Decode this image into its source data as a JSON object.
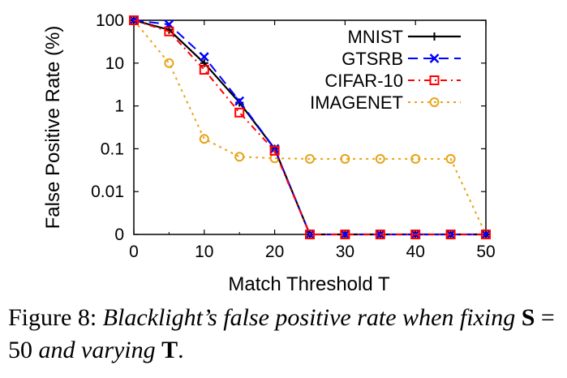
{
  "chart_data": {
    "type": "line",
    "xlabel": "Match Threshold T",
    "ylabel": "False Positive Rate (%)",
    "xlim": [
      0,
      50
    ],
    "x_ticks": [
      "0",
      "10",
      "20",
      "30",
      "40",
      "50"
    ],
    "y_ticks": [
      "0",
      "0.01",
      "0.1",
      "1",
      "10",
      "100"
    ],
    "y_scale": "log",
    "legend_position": "top-right",
    "grid": false,
    "x": [
      0,
      5,
      10,
      15,
      20,
      25,
      30,
      35,
      40,
      45,
      50
    ],
    "series": [
      {
        "name": "MNIST",
        "color": "#000000",
        "marker": "plus",
        "dash": "solid",
        "values": [
          100,
          60,
          10,
          1.2,
          0.1,
          0,
          0,
          0,
          0,
          0,
          0
        ]
      },
      {
        "name": "GTSRB",
        "color": "#0000ff",
        "marker": "x",
        "dash": "dashed",
        "values": [
          100,
          80,
          14,
          1.3,
          0.1,
          0,
          0,
          0,
          0,
          0,
          0
        ]
      },
      {
        "name": "CIFAR-10",
        "color": "#ff0000",
        "marker": "square",
        "dash": "dashdot",
        "values": [
          100,
          55,
          7,
          0.7,
          0.09,
          0,
          0,
          0,
          0,
          0,
          0
        ]
      },
      {
        "name": "IMAGENET",
        "color": "#e8a317",
        "marker": "circle",
        "dash": "dotted",
        "values": [
          100,
          10,
          0.17,
          0.065,
          0.06,
          0.058,
          0.058,
          0.058,
          0.058,
          0.058,
          0
        ]
      }
    ]
  },
  "caption": {
    "figure_label": "Figure 8:",
    "text_part1": "Blacklight’s false positive rate when fixing",
    "bold_s": "S",
    "text_eq": " = 50 ",
    "text_part2": "and varying",
    "bold_t": "T",
    "period": "."
  }
}
